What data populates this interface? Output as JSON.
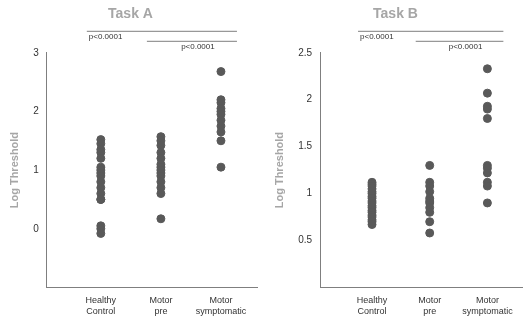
{
  "chart_data": [
    {
      "type": "scatter",
      "title": "Task A",
      "y_label": "Log Threshold",
      "categories": [
        "Healthy Control",
        "Motor pre",
        "Motor symptomatic"
      ],
      "values": [
        [
          1.52,
          1.45,
          1.35,
          1.3,
          1.2,
          1.05,
          1.0,
          0.95,
          0.9,
          0.8,
          0.7,
          0.6,
          0.5,
          0.5,
          0.05,
          0.0,
          -0.08
        ],
        [
          1.57,
          1.5,
          1.42,
          1.3,
          1.2,
          1.1,
          1.05,
          1.0,
          0.95,
          0.9,
          0.8,
          0.7,
          0.6,
          0.17
        ],
        [
          2.68,
          2.2,
          2.15,
          2.05,
          2.0,
          1.95,
          1.85,
          1.75,
          1.65,
          1.5,
          1.05
        ]
      ],
      "color": "#595959",
      "ylim": [
        -1,
        3
      ],
      "yticks": [
        0,
        1,
        2,
        3
      ],
      "grid": false,
      "annotations": [
        {
          "from": 0,
          "to": 2,
          "label": "p<0.0001"
        },
        {
          "from": 1,
          "to": 2,
          "label": "p<0.0001"
        }
      ]
    },
    {
      "type": "scatter",
      "title": "Task B",
      "y_label": "Log Threshold",
      "categories": [
        "Healthy Control",
        "Motor pre",
        "Motor symptomatic"
      ],
      "values": [
        [
          1.12,
          1.1,
          1.08,
          1.05,
          1.02,
          1.0,
          0.97,
          0.95,
          0.92,
          0.9,
          0.87,
          0.85,
          0.82,
          0.8,
          0.77,
          0.75,
          0.72,
          0.7,
          0.67
        ],
        [
          1.3,
          1.12,
          1.08,
          1.02,
          0.95,
          0.92,
          0.9,
          0.85,
          0.8,
          0.7,
          0.58
        ],
        [
          2.33,
          2.07,
          1.93,
          1.9,
          1.8,
          1.3,
          1.27,
          1.22,
          1.12,
          1.08,
          0.9
        ]
      ],
      "color": "#595959",
      "ylim": [
        0,
        2.5
      ],
      "yticks": [
        0.5,
        1,
        1.5,
        2,
        2.5
      ],
      "grid": false,
      "annotations": [
        {
          "from": 0,
          "to": 2,
          "label": "p<0.0001"
        },
        {
          "from": 1,
          "to": 2,
          "label": "p<0.0001"
        }
      ]
    }
  ]
}
